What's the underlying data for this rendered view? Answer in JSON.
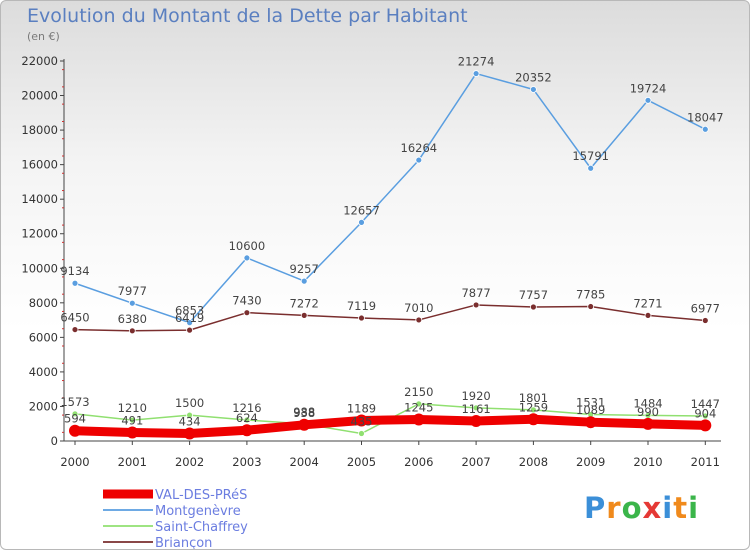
{
  "chart_data": {
    "type": "line",
    "title": "Evolution du Montant de la Dette par Habitant",
    "subtitle": "(en €)",
    "categories": [
      "2000",
      "2001",
      "2002",
      "2003",
      "2004",
      "2005",
      "2006",
      "2007",
      "2008",
      "2009",
      "2010",
      "2011"
    ],
    "ylim": [
      0,
      22000
    ],
    "yticks": [
      0,
      2000,
      4000,
      6000,
      8000,
      10000,
      12000,
      14000,
      16000,
      18000,
      20000,
      22000
    ],
    "grid": false,
    "legend_position": "bottom-left",
    "series": [
      {
        "name": "VAL-DES-PRéS",
        "color": "#ee0000",
        "values": [
          594,
          491,
          434,
          624,
          938,
          1189,
          1245,
          1161,
          1259,
          1089,
          990,
          904
        ]
      },
      {
        "name": "Montgenèvre",
        "color": "#5a9ee0",
        "values": [
          9134,
          7977,
          6853,
          10600,
          9257,
          12657,
          16264,
          21274,
          20352,
          15791,
          19724,
          18047
        ]
      },
      {
        "name": "Saint-Chaffrey",
        "color": "#90e070",
        "values": [
          1573,
          1210,
          1500,
          1216,
          988,
          435,
          2150,
          1920,
          1801,
          1531,
          1484,
          1447
        ]
      },
      {
        "name": "Briançon",
        "color": "#7a2e2e",
        "values": [
          6450,
          6380,
          6419,
          7430,
          7272,
          7119,
          7010,
          7877,
          7757,
          7785,
          7271,
          6977
        ]
      }
    ]
  },
  "logo": {
    "letters": [
      {
        "ch": "P",
        "color": "#3b8fd8"
      },
      {
        "ch": "r",
        "color": "#f08a1c"
      },
      {
        "ch": "o",
        "color": "#3bb54a"
      },
      {
        "ch": "x",
        "color": "#e53935"
      },
      {
        "ch": "i",
        "color": "#3b8fd8"
      },
      {
        "ch": "t",
        "color": "#f08a1c"
      },
      {
        "ch": "i",
        "color": "#3bb54a"
      }
    ]
  }
}
